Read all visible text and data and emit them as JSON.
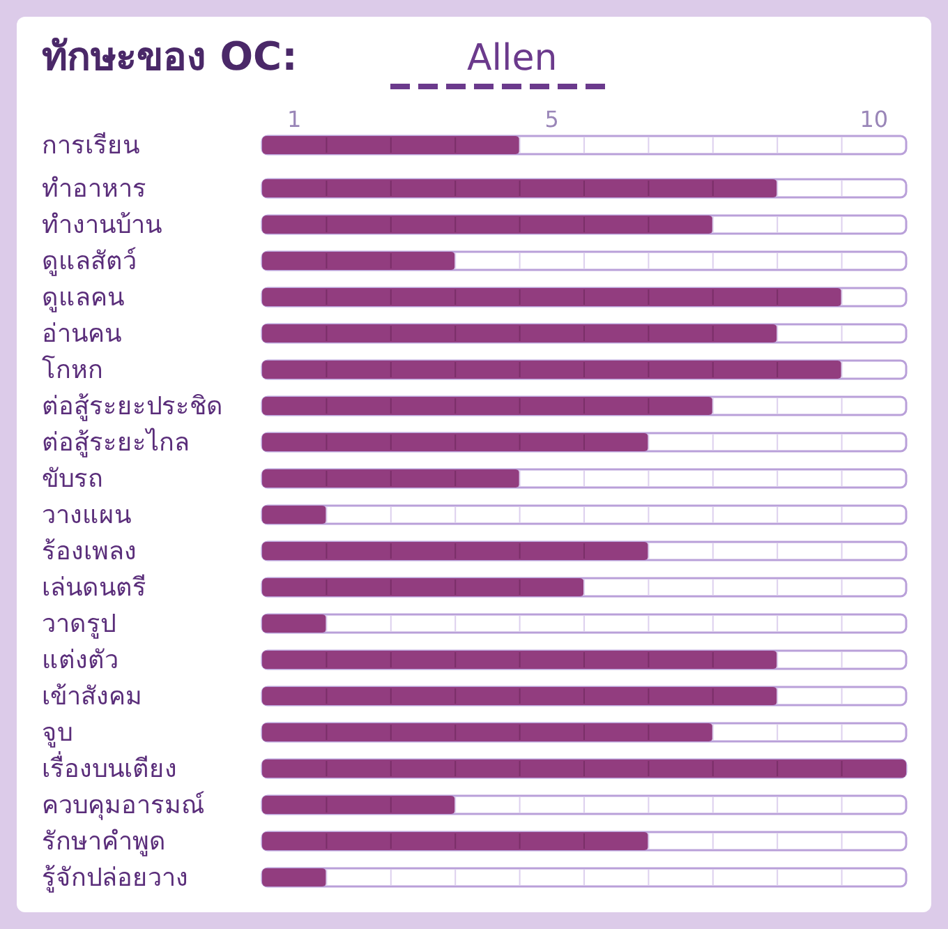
{
  "chart_data": {
    "type": "bar",
    "orientation": "horizontal",
    "title": "ทักษะของ OC:",
    "subtitle": "Allen",
    "categories": [
      "การเรียน",
      "ทำอาหาร",
      "ทำงานบ้าน",
      "ดูแลสัตว์",
      "ดูแลคน",
      "อ่านคน",
      "โกหก",
      "ต่อสู้ระยะประชิด",
      "ต่อสู้ระยะไกล",
      "ขับรถ",
      "วางแผน",
      "ร้องเพลง",
      "เล่นดนตรี",
      "วาดรูป",
      "แต่งตัว",
      "เข้าสังคม",
      "จูบ",
      "เรื่องบนเตียง",
      "ควบคุมอารมณ์",
      "รักษาคำพูด",
      "รู้จักปล่อยวาง"
    ],
    "values": [
      4,
      8,
      7,
      3,
      9,
      8,
      9,
      7,
      6,
      4,
      1,
      6,
      5,
      1,
      8,
      8,
      7,
      10,
      3,
      6,
      1
    ],
    "base": [
      0.5,
      0.5,
      0.5,
      0.5,
      0.5,
      0.5,
      0.5,
      0.5,
      0.5,
      0.5,
      0.5,
      0.5,
      0.5,
      0.5,
      0.5,
      0.5,
      0.5,
      0.5,
      0.5,
      0.5,
      0.5
    ],
    "color": "#923d7f",
    "xlim": [
      0.5,
      10.5
    ],
    "xticks": [
      1,
      5,
      10
    ]
  }
}
